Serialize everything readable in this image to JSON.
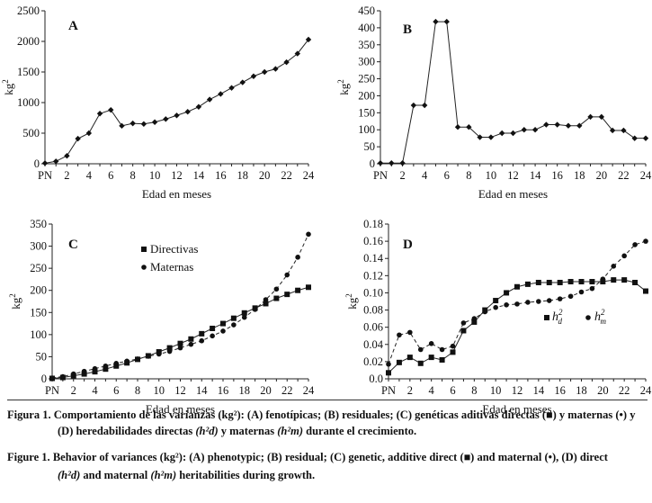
{
  "chart_data": [
    {
      "type": "line",
      "panel_label": "A",
      "categories": [
        "PN",
        "1",
        "2",
        "3",
        "4",
        "5",
        "6",
        "7",
        "8",
        "9",
        "10",
        "11",
        "12",
        "13",
        "14",
        "15",
        "16",
        "17",
        "18",
        "19",
        "20",
        "21",
        "22",
        "23",
        "24"
      ],
      "xticks": [
        "PN",
        "2",
        "4",
        "6",
        "8",
        "10",
        "12",
        "14",
        "16",
        "18",
        "20",
        "22",
        "24"
      ],
      "xlabel": "Edad en meses",
      "ylabel": "kg²",
      "ylim": [
        0,
        2500
      ],
      "yticks": [
        0,
        500,
        1000,
        1500,
        2000,
        2500
      ],
      "series": [
        {
          "name": "Fenotípicas",
          "marker": "diamond",
          "line": "solid",
          "values": [
            10,
            40,
            130,
            410,
            500,
            820,
            880,
            620,
            660,
            650,
            680,
            730,
            790,
            850,
            930,
            1050,
            1140,
            1240,
            1330,
            1430,
            1500,
            1550,
            1660,
            1800,
            2030
          ]
        }
      ]
    },
    {
      "type": "line",
      "panel_label": "B",
      "categories": [
        "PN",
        "1",
        "2",
        "3",
        "4",
        "5",
        "6",
        "7",
        "8",
        "9",
        "10",
        "11",
        "12",
        "13",
        "14",
        "15",
        "16",
        "17",
        "18",
        "19",
        "20",
        "21",
        "22",
        "23",
        "24"
      ],
      "xticks": [
        "PN",
        "2",
        "4",
        "6",
        "8",
        "10",
        "12",
        "14",
        "16",
        "18",
        "20",
        "22",
        "24"
      ],
      "xlabel": "Edad en meses",
      "ylabel": "kg²",
      "ylim": [
        0,
        450
      ],
      "yticks": [
        0,
        50,
        100,
        150,
        200,
        250,
        300,
        350,
        400,
        450
      ],
      "series": [
        {
          "name": "Residuales",
          "marker": "diamond",
          "line": "solid",
          "values": [
            2,
            2,
            2,
            172,
            172,
            418,
            418,
            108,
            108,
            78,
            78,
            90,
            90,
            100,
            100,
            115,
            115,
            112,
            112,
            138,
            138,
            98,
            98,
            75,
            75
          ]
        }
      ]
    },
    {
      "type": "line",
      "panel_label": "C",
      "categories": [
        "PN",
        "1",
        "2",
        "3",
        "4",
        "5",
        "6",
        "7",
        "8",
        "9",
        "10",
        "11",
        "12",
        "13",
        "14",
        "15",
        "16",
        "17",
        "18",
        "19",
        "20",
        "21",
        "22",
        "23",
        "24"
      ],
      "xticks": [
        "PN",
        "2",
        "4",
        "6",
        "8",
        "10",
        "12",
        "14",
        "16",
        "18",
        "20",
        "22",
        "24"
      ],
      "xlabel": "Edad en meses",
      "ylabel": "kg²",
      "ylim": [
        0,
        350
      ],
      "yticks": [
        0,
        50,
        100,
        150,
        200,
        250,
        300,
        350
      ],
      "legend": [
        "Directivas",
        "Maternas"
      ],
      "series": [
        {
          "name": "Directivas",
          "marker": "square",
          "line": "solid",
          "values": [
            1,
            3,
            7,
            11,
            16,
            22,
            29,
            36,
            44,
            52,
            61,
            70,
            80,
            90,
            102,
            114,
            125,
            137,
            149,
            160,
            170,
            182,
            191,
            200,
            207
          ]
        },
        {
          "name": "Maternas",
          "marker": "circle",
          "line": "dashed",
          "values": [
            2,
            5,
            11,
            17,
            23,
            29,
            35,
            40,
            45,
            51,
            56,
            62,
            70,
            78,
            86,
            97,
            108,
            122,
            139,
            157,
            179,
            203,
            235,
            275,
            327
          ]
        }
      ]
    },
    {
      "type": "line",
      "panel_label": "D",
      "categories": [
        "PN",
        "1",
        "2",
        "3",
        "4",
        "5",
        "6",
        "7",
        "8",
        "9",
        "10",
        "11",
        "12",
        "13",
        "14",
        "15",
        "16",
        "17",
        "18",
        "19",
        "20",
        "21",
        "22",
        "23",
        "24"
      ],
      "xticks": [
        "PN",
        "2",
        "4",
        "6",
        "8",
        "10",
        "12",
        "14",
        "16",
        "18",
        "20",
        "22",
        "24"
      ],
      "xlabel": "Edad en meses",
      "ylabel": "kg²",
      "ylim": [
        0.0,
        0.18
      ],
      "yticks": [
        "0.0",
        "0.02",
        "0.04",
        "0.06",
        "0.08",
        "0.10",
        "0.12",
        "0.14",
        "0.16",
        "0.18"
      ],
      "legend": [
        "h²d",
        "h²m"
      ],
      "series": [
        {
          "name": "h²d",
          "marker": "square",
          "line": "solid",
          "values": [
            0.007,
            0.019,
            0.025,
            0.018,
            0.025,
            0.022,
            0.031,
            0.056,
            0.066,
            0.08,
            0.091,
            0.1,
            0.107,
            0.11,
            0.112,
            0.112,
            0.112,
            0.113,
            0.113,
            0.113,
            0.113,
            0.115,
            0.115,
            0.112,
            0.102
          ]
        },
        {
          "name": "h²m",
          "marker": "circle",
          "line": "dashed",
          "values": [
            0.017,
            0.051,
            0.054,
            0.034,
            0.041,
            0.034,
            0.038,
            0.065,
            0.07,
            0.078,
            0.083,
            0.086,
            0.087,
            0.089,
            0.09,
            0.091,
            0.093,
            0.096,
            0.101,
            0.105,
            0.116,
            0.131,
            0.143,
            0.156,
            0.16
          ]
        }
      ]
    }
  ],
  "caption": {
    "es_label": "Figura 1.",
    "es_line1": "Comportamiento de las varianzas (kg²): (A) fenotípicas; (B) residuales; (C) genéticas aditivas directas (■) y maternas (•) y",
    "es_line2a": "(D) heredabilidades directas",
    "es_line2b": "y maternas",
    "es_line2c": "durante el crecimiento.",
    "en_label": "Figure 1.",
    "en_line1": "Behavior of variances (kg²): (A) phenotypic; (B) residual; (C) genetic, additive direct (■) and maternal (•), (D) direct",
    "en_line2a": "and maternal",
    "en_line2b": "heritabilities during growth."
  }
}
